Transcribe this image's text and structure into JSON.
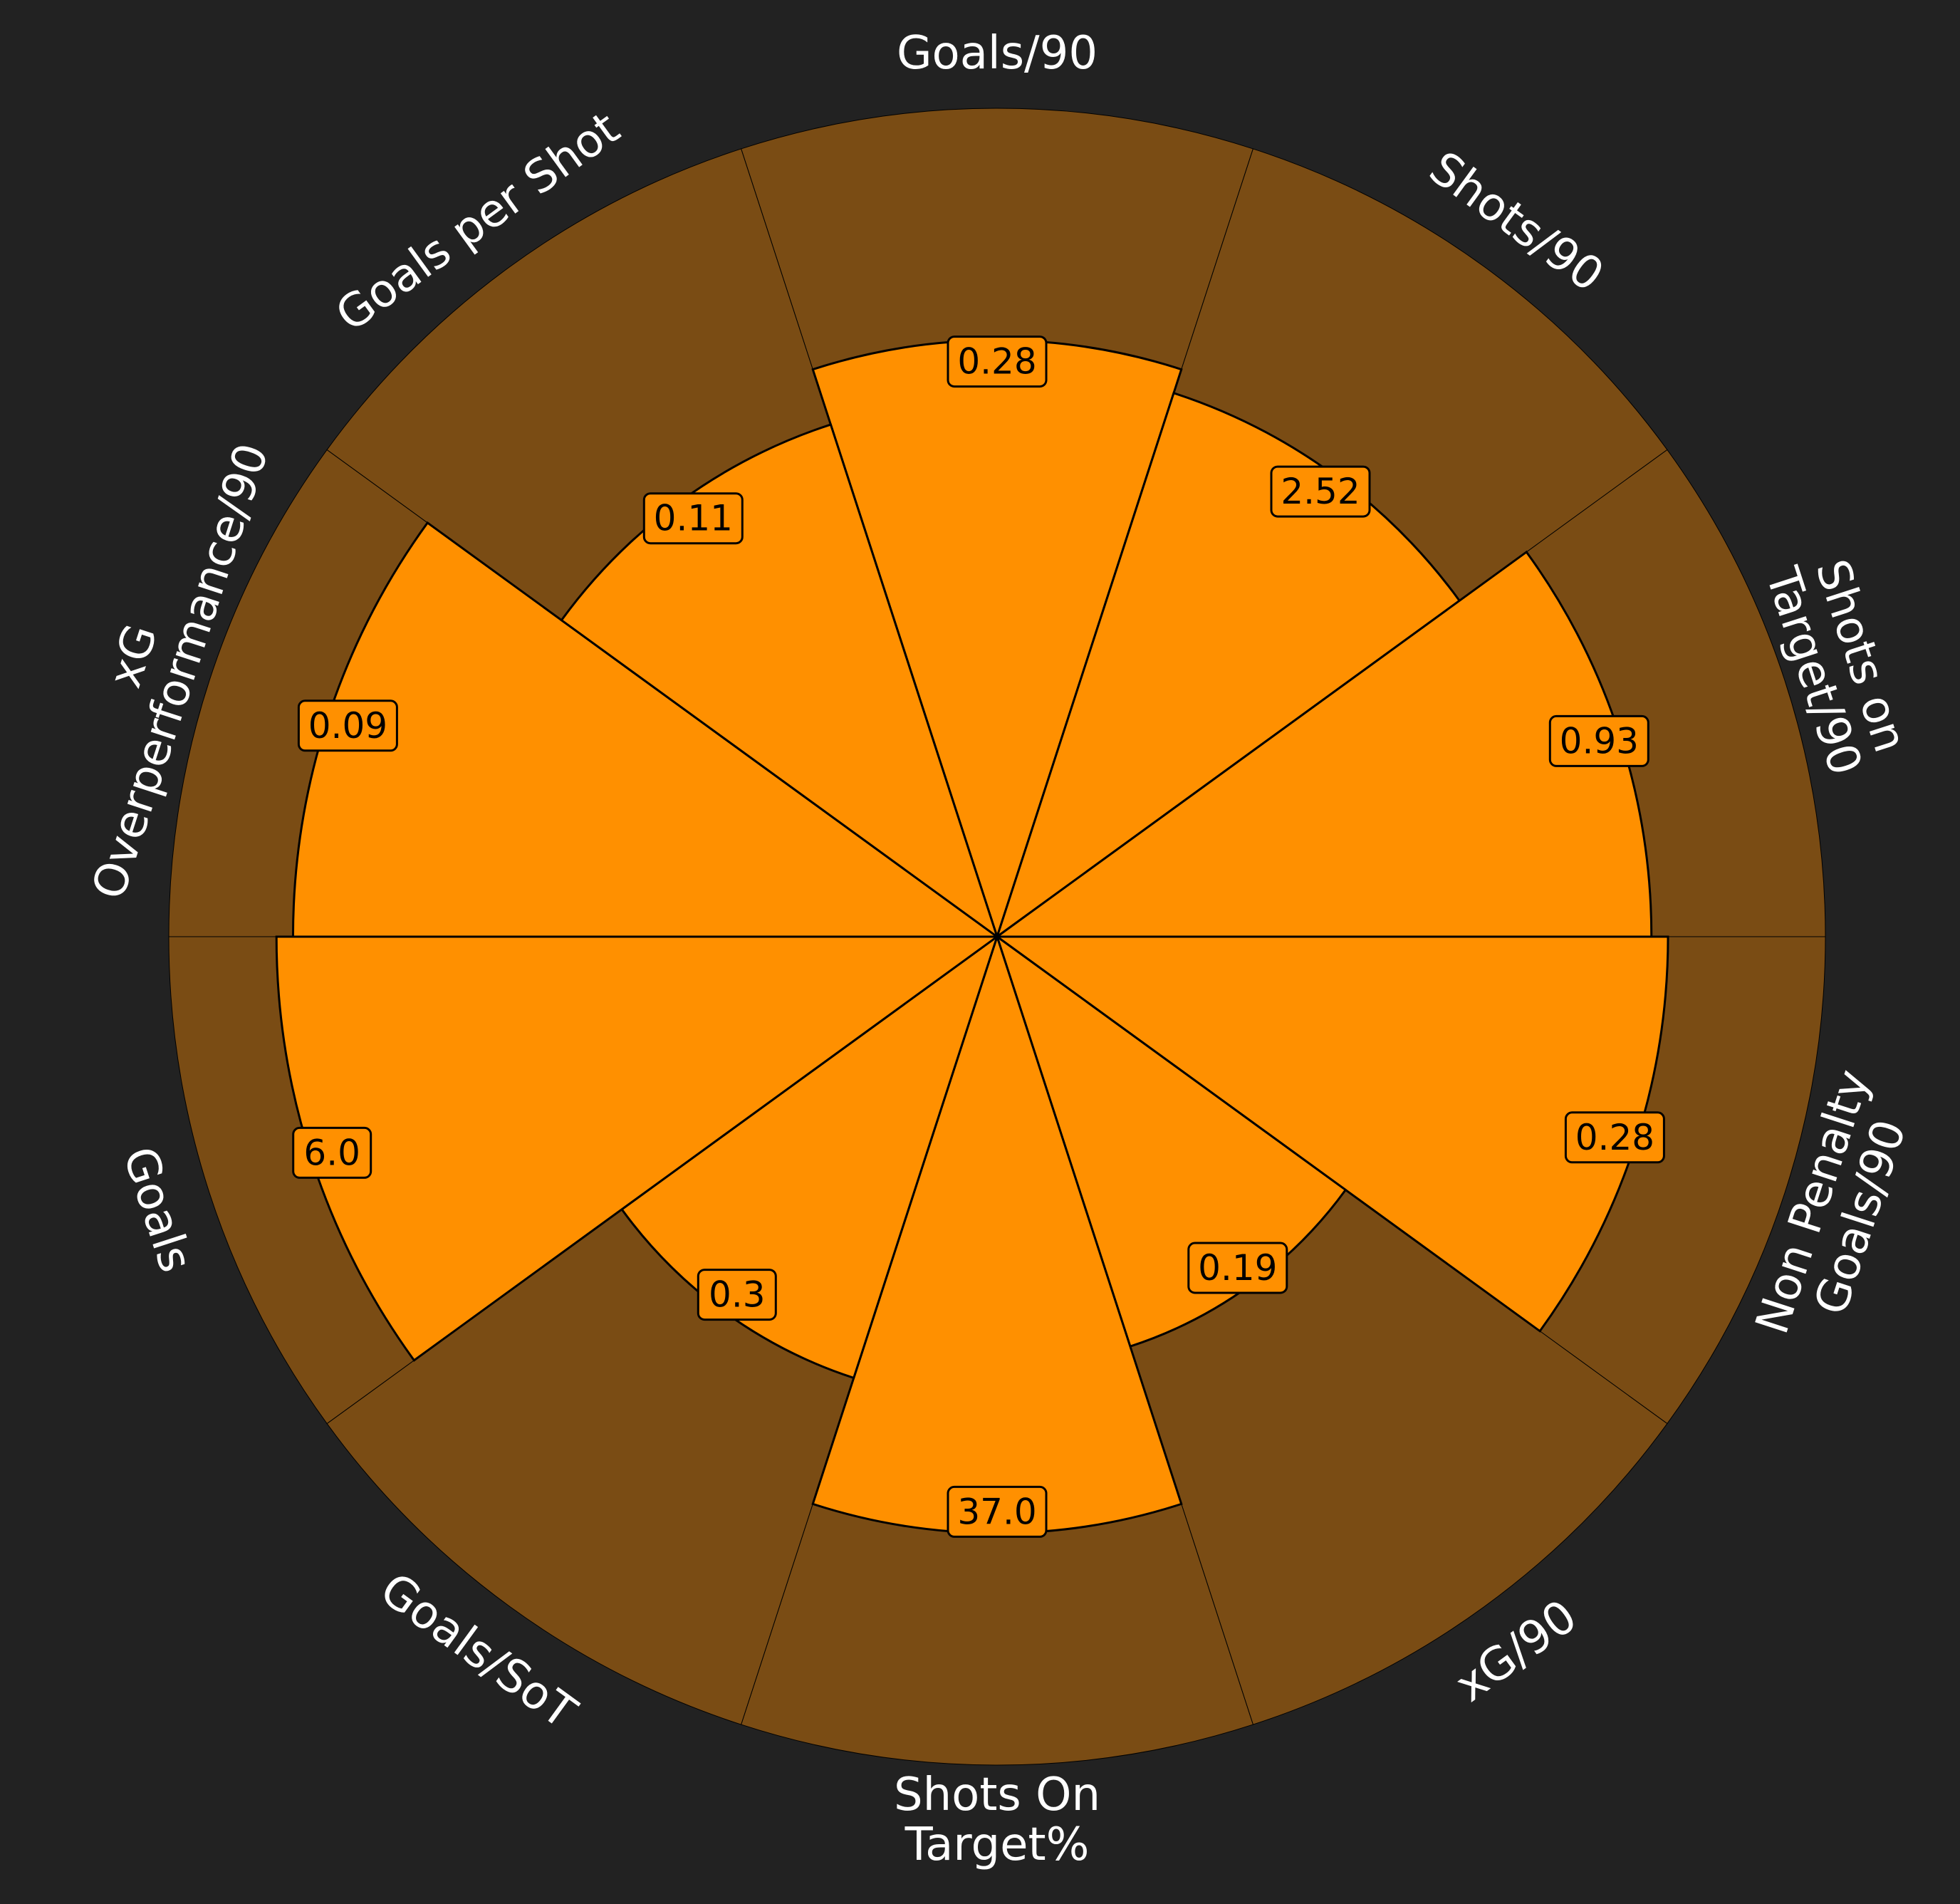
{
  "chart_data": {
    "type": "pie",
    "subtype": "polar-bar",
    "title": "",
    "categories": [
      "Goals/90",
      "Shots/90",
      "Shots on\nTarget/90",
      "Non Penalty\nGoals/90",
      "xG/90",
      "Shots On\nTarget%",
      "Goals/SoT",
      "Goals",
      "xG\nOverperformance/90",
      "Goals per Shot"
    ],
    "values": [
      0.28,
      2.52,
      0.93,
      0.28,
      0.19,
      37.0,
      0.3,
      6.0,
      0.09,
      0.11
    ],
    "value_labels": [
      "0.28",
      "2.52",
      "0.93",
      "0.28",
      "0.19",
      "37.0",
      "0.3",
      "6.0",
      "0.09",
      "0.11"
    ],
    "percentiles": [
      72,
      69,
      79,
      81,
      52,
      72,
      56,
      87,
      85,
      65
    ],
    "start": "top",
    "direction": "clockwise",
    "grid": false,
    "legend": "none",
    "colors": {
      "background": "#222222",
      "slice": "#ff9000",
      "slice_background": "#7a4c14",
      "edge": "#000000",
      "text": "#ffffff"
    }
  }
}
